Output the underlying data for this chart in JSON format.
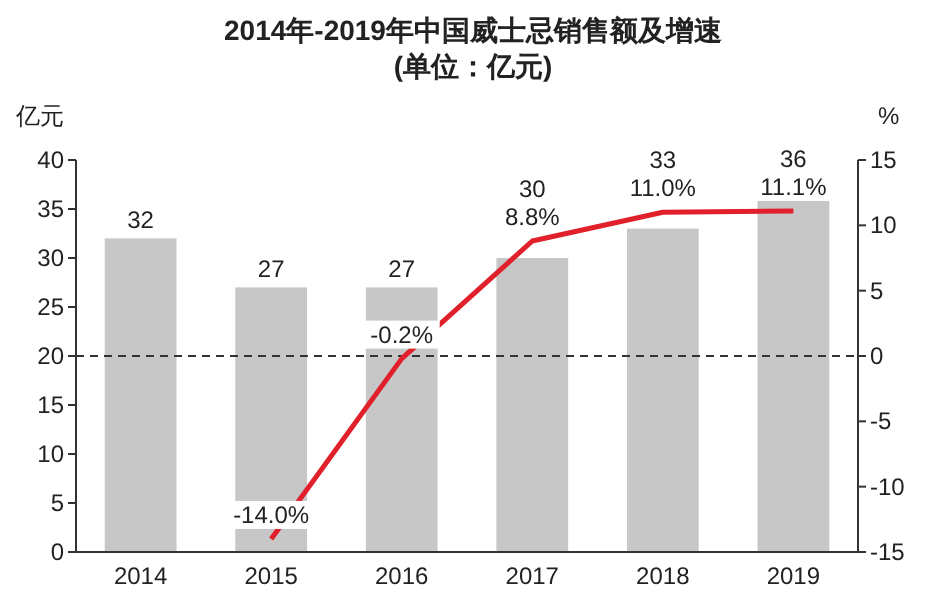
{
  "chart_data": {
    "type": "bar",
    "title": "2014年-2019年中国威士忌销售额及增速",
    "subtitle": "(单位：亿元)",
    "ylabel": "亿元",
    "y2label": "%",
    "categories": [
      "2014",
      "2015",
      "2016",
      "2017",
      "2018",
      "2019"
    ],
    "series": [
      {
        "color": "#c8c7c8",
        "values": [
          32,
          27,
          27,
          30,
          33,
          36
        ]
      },
      {
        "type": "line",
        "axis": "y2",
        "color": "#e0202a",
        "values": [
          null,
          -14.0,
          -0.2,
          8.8,
          11.0,
          11.1
        ],
        "value_labels": [
          null,
          "-14.0%",
          "-0.2%",
          "8.8%",
          "11.0%",
          "11.1%"
        ]
      }
    ],
    "data_labels": true,
    "ylim": [
      0,
      40
    ],
    "yticks": [
      0,
      5,
      10,
      15,
      20,
      25,
      30,
      35,
      40
    ],
    "y2lim": [
      -15,
      15
    ],
    "y2ticks": [
      -15,
      -10,
      -5,
      0,
      5,
      10,
      15
    ],
    "ref_lines": [
      {
        "axis": "y2",
        "value": 0,
        "line_style": "dashed",
        "color": "#333333"
      }
    ],
    "marker": "none",
    "line_style": "solid"
  }
}
